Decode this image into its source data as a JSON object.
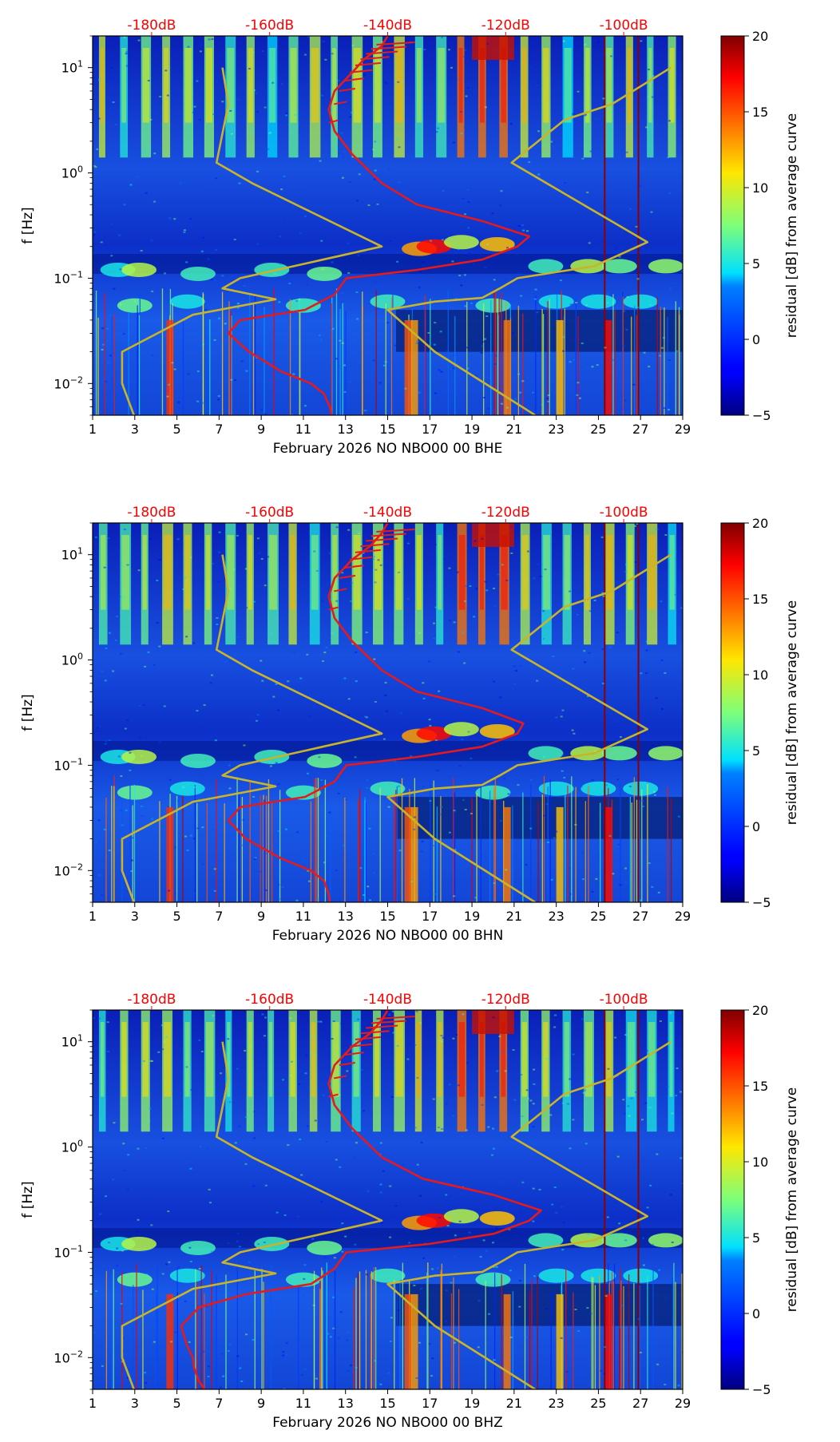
{
  "figure": {
    "caption_hidden": ""
  },
  "chart_data": [
    {
      "type": "heatmap",
      "xlabel": "February 2026 NO NBO00 00 BHE",
      "ylabel": "f [Hz]",
      "x_ticks": [
        "1",
        "3",
        "5",
        "7",
        "9",
        "11",
        "13",
        "15",
        "17",
        "19",
        "21",
        "23",
        "25",
        "27",
        "29"
      ],
      "xlim": [
        1,
        29
      ],
      "ylim_hz": [
        0.005,
        20
      ],
      "y_tick_labels": [
        {
          "value": 0.01,
          "label": "10",
          "exp": "−2"
        },
        {
          "value": 0.1,
          "label": "10",
          "exp": "−1"
        },
        {
          "value": 1,
          "label": "10",
          "exp": "0"
        },
        {
          "value": 10,
          "label": "10",
          "exp": "1"
        }
      ],
      "top_axis_labels": [
        {
          "value": -180,
          "label": "-180dB"
        },
        {
          "value": -160,
          "label": "-160dB"
        },
        {
          "value": -140,
          "label": "-140dB"
        },
        {
          "value": -120,
          "label": "-120dB"
        },
        {
          "value": -100,
          "label": "-100dB"
        }
      ],
      "top_axis_range_db": [
        -190,
        -90
      ],
      "colorbar": {
        "label": "residual [dB] from average curve",
        "range": [
          -5,
          20
        ],
        "ticks": [
          "−5",
          "0",
          "5",
          "10",
          "15",
          "20"
        ]
      },
      "colors": {
        "mean_curve": "#e41a1c",
        "noise_model": "#c8b42a",
        "tick_red": "#ff0000"
      },
      "series": [
        {
          "name": "average PSD",
          "color": "#e41a1c",
          "points": [
            [
              -149.5,
              0.005
            ],
            [
              -149.8,
              0.006
            ],
            [
              -150.8,
              0.008
            ],
            [
              -153,
              0.01
            ],
            [
              -158,
              0.013
            ],
            [
              -163.5,
              0.02
            ],
            [
              -167,
              0.03
            ],
            [
              -165,
              0.04
            ],
            [
              -154,
              0.05
            ],
            [
              -149,
              0.07
            ],
            [
              -147,
              0.1
            ],
            [
              -135,
              0.12
            ],
            [
              -124,
              0.15
            ],
            [
              -118,
              0.2
            ],
            [
              -116,
              0.25
            ],
            [
              -124,
              0.35
            ],
            [
              -135,
              0.5
            ],
            [
              -141,
              0.8
            ],
            [
              -146,
              1.5
            ],
            [
              -149,
              2.5
            ],
            [
              -150,
              4
            ],
            [
              -149,
              6
            ],
            [
              -146,
              9
            ],
            [
              -144,
              12
            ],
            [
              -141,
              16
            ],
            [
              -140,
              20
            ]
          ]
        },
        {
          "name": "NLNM",
          "color": "#c8b42a",
          "points": [
            [
              -183,
              0.005
            ],
            [
              -185,
              0.01
            ],
            [
              -185,
              0.02
            ],
            [
              -179,
              0.03
            ],
            [
              -173,
              0.045
            ],
            [
              -159,
              0.063
            ],
            [
              -168,
              0.08
            ],
            [
              -165,
              0.1
            ],
            [
              -151,
              0.15
            ],
            [
              -141,
              0.2
            ],
            [
              -163,
              0.8
            ],
            [
              -169,
              1.25
            ],
            [
              -167,
              4.5
            ],
            [
              -168,
              10
            ]
          ]
        },
        {
          "name": "NHNM",
          "color": "#c8b42a",
          "points": [
            [
              -115,
              0.005
            ],
            [
              -132,
              0.02
            ],
            [
              -140,
              0.05
            ],
            [
              -132,
              0.06
            ],
            [
              -124,
              0.065
            ],
            [
              -121,
              0.08
            ],
            [
              -118,
              0.1
            ],
            [
              -105,
              0.13
            ],
            [
              -96,
              0.22
            ],
            [
              -119,
              1.25
            ],
            [
              -110,
              3.2
            ],
            [
              -102,
              4.5
            ],
            [
              -92,
              10
            ]
          ]
        }
      ]
    },
    {
      "type": "heatmap",
      "xlabel": "February 2026 NO NBO00 00 BHN",
      "ylabel": "f [Hz]",
      "x_ticks": [
        "1",
        "3",
        "5",
        "7",
        "9",
        "11",
        "13",
        "15",
        "17",
        "19",
        "21",
        "23",
        "25",
        "27",
        "29"
      ],
      "xlim": [
        1,
        29
      ],
      "ylim_hz": [
        0.005,
        20
      ],
      "y_tick_labels": [
        {
          "value": 0.01,
          "label": "10",
          "exp": "−2"
        },
        {
          "value": 0.1,
          "label": "10",
          "exp": "−1"
        },
        {
          "value": 1,
          "label": "10",
          "exp": "0"
        },
        {
          "value": 10,
          "label": "10",
          "exp": "1"
        }
      ],
      "top_axis_labels": [
        {
          "value": -180,
          "label": "-180dB"
        },
        {
          "value": -160,
          "label": "-160dB"
        },
        {
          "value": -140,
          "label": "-140dB"
        },
        {
          "value": -120,
          "label": "-120dB"
        },
        {
          "value": -100,
          "label": "-100dB"
        }
      ],
      "top_axis_range_db": [
        -190,
        -90
      ],
      "colorbar": {
        "label": "residual [dB] from average curve",
        "range": [
          -5,
          20
        ],
        "ticks": [
          "−5",
          "0",
          "5",
          "10",
          "15",
          "20"
        ]
      },
      "colors": {
        "mean_curve": "#e41a1c",
        "noise_model": "#c8b42a",
        "tick_red": "#ff0000"
      },
      "series": [
        {
          "name": "average PSD",
          "color": "#e41a1c",
          "points": [
            [
              -149.8,
              0.005
            ],
            [
              -150,
              0.006
            ],
            [
              -150.8,
              0.008
            ],
            [
              -153,
              0.01
            ],
            [
              -158,
              0.013
            ],
            [
              -164,
              0.02
            ],
            [
              -167,
              0.03
            ],
            [
              -165,
              0.04
            ],
            [
              -154,
              0.05
            ],
            [
              -149,
              0.07
            ],
            [
              -147,
              0.1
            ],
            [
              -135,
              0.12
            ],
            [
              -124,
              0.15
            ],
            [
              -118,
              0.2
            ],
            [
              -117,
              0.25
            ],
            [
              -124,
              0.35
            ],
            [
              -135,
              0.5
            ],
            [
              -141,
              0.8
            ],
            [
              -146,
              1.5
            ],
            [
              -149,
              2.5
            ],
            [
              -150,
              4
            ],
            [
              -149,
              6
            ],
            [
              -146,
              9
            ],
            [
              -143,
              12
            ],
            [
              -141,
              16
            ],
            [
              -140,
              20
            ]
          ]
        },
        {
          "name": "NLNM",
          "color": "#c8b42a",
          "points": [
            [
              -183,
              0.005
            ],
            [
              -185,
              0.01
            ],
            [
              -185,
              0.02
            ],
            [
              -179,
              0.03
            ],
            [
              -173,
              0.045
            ],
            [
              -159,
              0.063
            ],
            [
              -168,
              0.08
            ],
            [
              -165,
              0.1
            ],
            [
              -151,
              0.15
            ],
            [
              -141,
              0.2
            ],
            [
              -163,
              0.8
            ],
            [
              -169,
              1.25
            ],
            [
              -167,
              4.5
            ],
            [
              -168,
              10
            ]
          ]
        },
        {
          "name": "NHNM",
          "color": "#c8b42a",
          "points": [
            [
              -115,
              0.005
            ],
            [
              -132,
              0.02
            ],
            [
              -140,
              0.05
            ],
            [
              -132,
              0.06
            ],
            [
              -124,
              0.065
            ],
            [
              -121,
              0.08
            ],
            [
              -118,
              0.1
            ],
            [
              -105,
              0.13
            ],
            [
              -96,
              0.22
            ],
            [
              -119,
              1.25
            ],
            [
              -110,
              3.2
            ],
            [
              -102,
              4.5
            ],
            [
              -92,
              10
            ]
          ]
        }
      ]
    },
    {
      "type": "heatmap",
      "xlabel": "February 2026 NO NBO00 00 BHZ",
      "ylabel": "f [Hz]",
      "x_ticks": [
        "1",
        "3",
        "5",
        "7",
        "9",
        "11",
        "13",
        "15",
        "17",
        "19",
        "21",
        "23",
        "25",
        "27",
        "29"
      ],
      "xlim": [
        1,
        29
      ],
      "ylim_hz": [
        0.005,
        20
      ],
      "y_tick_labels": [
        {
          "value": 0.01,
          "label": "10",
          "exp": "−2"
        },
        {
          "value": 0.1,
          "label": "10",
          "exp": "−1"
        },
        {
          "value": 1,
          "label": "10",
          "exp": "0"
        },
        {
          "value": 10,
          "label": "10",
          "exp": "1"
        }
      ],
      "top_axis_labels": [
        {
          "value": -180,
          "label": "-180dB"
        },
        {
          "value": -160,
          "label": "-160dB"
        },
        {
          "value": -140,
          "label": "-140dB"
        },
        {
          "value": -120,
          "label": "-120dB"
        },
        {
          "value": -100,
          "label": "-100dB"
        }
      ],
      "top_axis_range_db": [
        -190,
        -90
      ],
      "colorbar": {
        "label": "residual [dB] from average curve",
        "range": [
          -5,
          20
        ],
        "ticks": [
          "−5",
          "0",
          "5",
          "10",
          "15",
          "20"
        ]
      },
      "colors": {
        "mean_curve": "#e41a1c",
        "noise_model": "#c8b42a",
        "tick_red": "#ff0000"
      },
      "series": [
        {
          "name": "average PSD",
          "color": "#e41a1c",
          "points": [
            [
              -171,
              0.005
            ],
            [
              -172,
              0.006
            ],
            [
              -172.8,
              0.008
            ],
            [
              -173,
              0.01
            ],
            [
              -174,
              0.013
            ],
            [
              -175,
              0.02
            ],
            [
              -172,
              0.03
            ],
            [
              -164,
              0.04
            ],
            [
              -153,
              0.05
            ],
            [
              -149,
              0.07
            ],
            [
              -147,
              0.1
            ],
            [
              -133,
              0.12
            ],
            [
              -122,
              0.15
            ],
            [
              -116,
              0.2
            ],
            [
              -114,
              0.25
            ],
            [
              -122,
              0.35
            ],
            [
              -134,
              0.5
            ],
            [
              -141,
              0.8
            ],
            [
              -146,
              1.5
            ],
            [
              -149,
              2.5
            ],
            [
              -150,
              4
            ],
            [
              -149,
              6
            ],
            [
              -146,
              9
            ],
            [
              -143,
              12
            ],
            [
              -141,
              16
            ],
            [
              -140,
              20
            ]
          ]
        },
        {
          "name": "NLNM",
          "color": "#c8b42a",
          "points": [
            [
              -183,
              0.005
            ],
            [
              -185,
              0.01
            ],
            [
              -185,
              0.02
            ],
            [
              -179,
              0.03
            ],
            [
              -173,
              0.045
            ],
            [
              -159,
              0.063
            ],
            [
              -168,
              0.08
            ],
            [
              -165,
              0.1
            ],
            [
              -151,
              0.15
            ],
            [
              -141,
              0.2
            ],
            [
              -163,
              0.8
            ],
            [
              -169,
              1.25
            ],
            [
              -167,
              4.5
            ],
            [
              -168,
              10
            ]
          ]
        },
        {
          "name": "NHNM",
          "color": "#c8b42a",
          "points": [
            [
              -115,
              0.005
            ],
            [
              -132,
              0.02
            ],
            [
              -140,
              0.05
            ],
            [
              -132,
              0.06
            ],
            [
              -124,
              0.065
            ],
            [
              -121,
              0.08
            ],
            [
              -118,
              0.1
            ],
            [
              -105,
              0.13
            ],
            [
              -96,
              0.22
            ],
            [
              -119,
              1.25
            ],
            [
              -110,
              3.2
            ],
            [
              -102,
              4.5
            ],
            [
              -92,
              10
            ]
          ]
        }
      ]
    }
  ]
}
